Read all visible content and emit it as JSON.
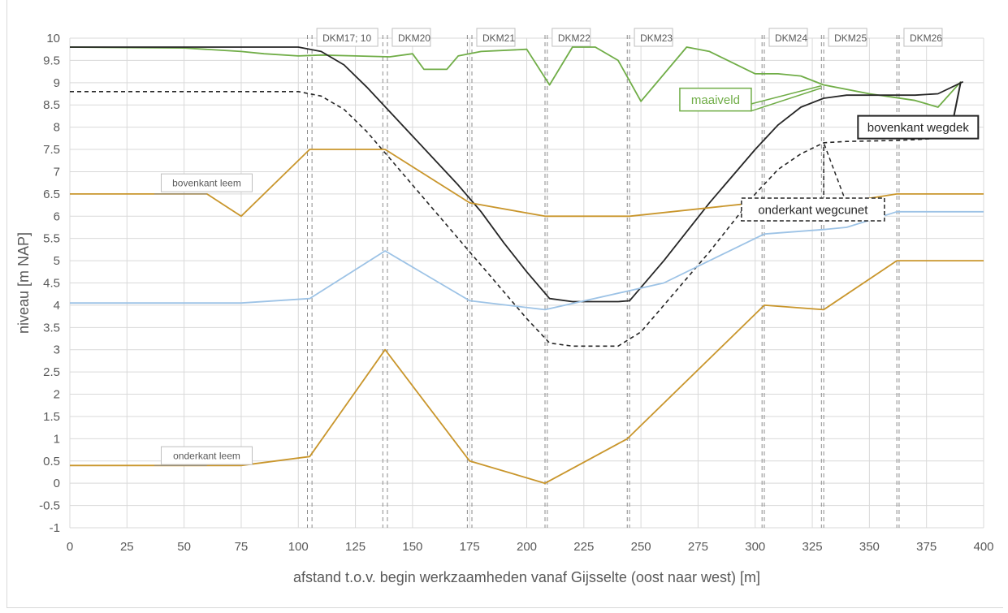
{
  "chart_data": {
    "type": "line",
    "xlabel": "afstand t.o.v. begin werkzaamheden vanaf Gijsselte (oost naar west) [m]",
    "ylabel": "niveau [m NAP]",
    "xlim": [
      0,
      400
    ],
    "ylim": [
      -1,
      10
    ],
    "x_ticks": [
      "0",
      "25",
      "50",
      "75",
      "100",
      "125",
      "150",
      "175",
      "200",
      "225",
      "250",
      "275",
      "300",
      "325",
      "350",
      "375",
      "400"
    ],
    "y_ticks": [
      "10",
      "9.5",
      "9",
      "8.5",
      "8",
      "7.5",
      "7",
      "6.5",
      "6",
      "5.5",
      "5",
      "4.5",
      "4",
      "3.5",
      "3",
      "2.5",
      "2",
      "1.5",
      "1",
      "0.5",
      "0",
      "-0.5",
      "-1"
    ],
    "grid": true,
    "markers": [
      {
        "label": "DKM17; 10",
        "x": [
          104,
          106
        ]
      },
      {
        "label": "DKM20",
        "x": [
          137,
          139
        ]
      },
      {
        "label": "DKM21",
        "x": [
          174,
          176
        ]
      },
      {
        "label": "DKM22",
        "x": [
          208,
          209
        ]
      },
      {
        "label": "DKM23",
        "x": [
          244,
          245
        ]
      },
      {
        "label": "DKM24",
        "x": [
          303,
          304
        ]
      },
      {
        "label": "DKM25",
        "x": [
          329,
          330
        ]
      },
      {
        "label": "DKM26",
        "x": [
          362,
          363
        ]
      }
    ],
    "series": [
      {
        "name": "maaiveld",
        "color": "#70ad47",
        "dash": false,
        "x": [
          0,
          50,
          75,
          85,
          100,
          110,
          125,
          140,
          150,
          155,
          165,
          170,
          180,
          200,
          210,
          220,
          230,
          240,
          250,
          270,
          280,
          300,
          310,
          320,
          330,
          350,
          370,
          380,
          390
        ],
        "y": [
          9.8,
          9.78,
          9.7,
          9.65,
          9.6,
          9.62,
          9.6,
          9.58,
          9.65,
          9.3,
          9.3,
          9.6,
          9.7,
          9.75,
          8.95,
          9.8,
          9.8,
          9.5,
          8.58,
          9.8,
          9.7,
          9.2,
          9.2,
          9.15,
          8.95,
          8.75,
          8.6,
          8.45,
          9.02
        ]
      },
      {
        "name": "bovenkant wegdek",
        "color": "#262626",
        "dash": false,
        "x": [
          0,
          50,
          100,
          110,
          120,
          130,
          140,
          150,
          160,
          170,
          180,
          190,
          200,
          210,
          220,
          230,
          240,
          245,
          260,
          280,
          300,
          310,
          320,
          330,
          340,
          350,
          360,
          370,
          380,
          391
        ],
        "y": [
          9.8,
          9.8,
          9.8,
          9.7,
          9.4,
          8.9,
          8.35,
          7.8,
          7.25,
          6.7,
          6.1,
          5.4,
          4.75,
          4.15,
          4.08,
          4.08,
          4.08,
          4.1,
          5.0,
          6.3,
          7.5,
          8.05,
          8.45,
          8.65,
          8.72,
          8.72,
          8.72,
          8.72,
          8.75,
          9.02
        ]
      },
      {
        "name": "onderkant wegcunet",
        "color": "#262626",
        "dash": true,
        "x": [
          0,
          100,
          110,
          120,
          130,
          140,
          150,
          160,
          170,
          180,
          190,
          200,
          210,
          220,
          230,
          240,
          250,
          260,
          280,
          300,
          310,
          320,
          330,
          340,
          360,
          370,
          380,
          390
        ],
        "y": [
          8.8,
          8.8,
          8.7,
          8.4,
          7.9,
          7.3,
          6.7,
          6.1,
          5.5,
          4.9,
          4.3,
          3.7,
          3.15,
          3.08,
          3.08,
          3.08,
          3.4,
          4.0,
          5.2,
          6.5,
          7.05,
          7.4,
          7.65,
          7.68,
          7.7,
          7.72,
          7.75,
          8.0
        ]
      },
      {
        "name": "bovenkant leem",
        "color": "#c9962c",
        "dash": false,
        "x": [
          0,
          60,
          75,
          105,
          138,
          175,
          208,
          240,
          245,
          300,
          325,
          362,
          400
        ],
        "y": [
          6.5,
          6.5,
          6.0,
          7.5,
          7.5,
          6.3,
          6.0,
          6.0,
          6.0,
          6.3,
          6.2,
          6.5,
          6.5
        ]
      },
      {
        "name": "",
        "color": "#9dc3e6",
        "dash": false,
        "x": [
          0,
          75,
          105,
          138,
          175,
          208,
          260,
          304,
          330,
          340,
          362,
          400
        ],
        "y": [
          4.05,
          4.05,
          4.15,
          5.22,
          4.1,
          3.9,
          4.5,
          5.6,
          5.7,
          5.75,
          6.1,
          6.1
        ]
      },
      {
        "name": "onderkant leem",
        "color": "#c9962c",
        "dash": false,
        "x": [
          0,
          75,
          105,
          138,
          175,
          208,
          244,
          304,
          330,
          362,
          400
        ],
        "y": [
          0.4,
          0.4,
          0.6,
          3.0,
          0.5,
          0.0,
          1.0,
          4.0,
          3.9,
          5.0,
          5.0
        ]
      }
    ],
    "annotations": [
      {
        "text": "bovenkant leem"
      },
      {
        "text": "onderkant leem"
      },
      {
        "text": "maaiveld"
      },
      {
        "text": "bovenkant wegdek"
      },
      {
        "text": "onderkant wegcunet"
      }
    ]
  }
}
